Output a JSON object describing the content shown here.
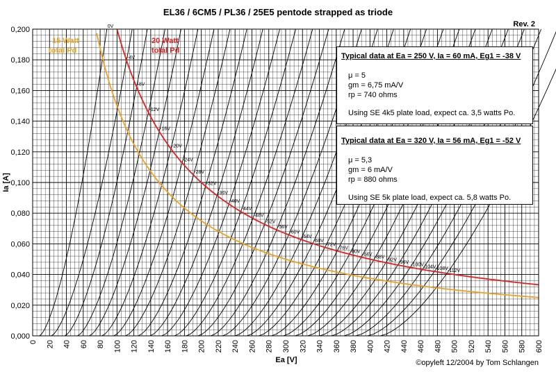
{
  "chart_data": {
    "type": "line",
    "title": "EL36 / 6CM5 / PL36 / 25E5 pentode strapped as triode",
    "revision": "Rev. 2",
    "copyright": "©opyleft 12/2004 by Tom Schlangen",
    "xlabel": "Ea [V]",
    "ylabel": "Ia [A]",
    "xlim": [
      0,
      600
    ],
    "ylim": [
      0,
      0.2
    ],
    "grid": true,
    "x_ticks": [
      "0",
      "20",
      "40",
      "60",
      "80",
      "100",
      "120",
      "140",
      "160",
      "180",
      "200",
      "220",
      "240",
      "260",
      "280",
      "300",
      "320",
      "340",
      "360",
      "380",
      "400",
      "420",
      "440",
      "460",
      "480",
      "500",
      "520",
      "540",
      "560",
      "580",
      "600"
    ],
    "y_ticks": [
      "0,000",
      "0,020",
      "0,040",
      "0,060",
      "0,080",
      "0,100",
      "0,120",
      "0,140",
      "0,160",
      "0,180",
      "0,200"
    ],
    "grid_curves": [
      {
        "label": "0V",
        "x_zero": 8,
        "x_top": 88
      },
      {
        "label": "-4V",
        "x_zero": 22,
        "x_top": 118
      },
      {
        "label": "-8V",
        "x_zero": 38,
        "x_top": 136
      },
      {
        "label": "-12V",
        "x_zero": 53,
        "x_top": 157
      },
      {
        "label": "-16V",
        "x_zero": 67,
        "x_top": 176
      },
      {
        "label": "-20V",
        "x_zero": 82,
        "x_top": 196
      },
      {
        "label": "-24V",
        "x_zero": 96,
        "x_top": 215
      },
      {
        "label": "-28V",
        "x_zero": 110,
        "x_top": 234
      },
      {
        "label": "-32V",
        "x_zero": 125,
        "x_top": 254
      },
      {
        "label": "-36V",
        "x_zero": 139,
        "x_top": 273
      },
      {
        "label": "-40V",
        "x_zero": 153,
        "x_top": 293
      },
      {
        "label": "-44V",
        "x_zero": 168,
        "x_top": 312
      },
      {
        "label": "-48V",
        "x_zero": 182,
        "x_top": 332
      },
      {
        "label": "-52V",
        "x_zero": 196,
        "x_top": 351
      },
      {
        "label": "-56V",
        "x_zero": 211,
        "x_top": 370
      },
      {
        "label": "-60V",
        "x_zero": 225,
        "x_top": 390
      },
      {
        "label": "-64V",
        "x_zero": 240,
        "x_top": 409
      },
      {
        "label": "-68V",
        "x_zero": 254,
        "x_top": 428
      },
      {
        "label": "-72V",
        "x_zero": 268,
        "x_top": 448
      },
      {
        "label": "-76V",
        "x_zero": 283,
        "x_top": 467
      },
      {
        "label": "-80V",
        "x_zero": 297,
        "x_top": 487
      },
      {
        "label": "-84V",
        "x_zero": 311,
        "x_top": 506
      },
      {
        "label": "-88V",
        "x_zero": 326,
        "x_top": 525
      },
      {
        "label": "-92V",
        "x_zero": 340,
        "x_top": 545
      },
      {
        "label": "-96V",
        "x_zero": 354,
        "x_top": 564
      },
      {
        "label": "-100V",
        "x_zero": 369,
        "x_top": 583
      },
      {
        "label": "-104V",
        "x_zero": 383,
        "x_top": 603
      },
      {
        "label": "-108V",
        "x_zero": 397,
        "x_top": 622
      },
      {
        "label": "-112V",
        "x_zero": 412,
        "x_top": 641
      }
    ],
    "power_curves": [
      {
        "label_line1": "15 Watt",
        "label_line2": "total Pd",
        "watts": 15,
        "color": "#f0a020"
      },
      {
        "label_line1": "20 Watt",
        "label_line2": "total Pd",
        "watts": 20,
        "color": "#e02020"
      }
    ]
  },
  "info_boxes": [
    {
      "header": "Typical data at Ea = 250 V, Ia = 60 mA, Eg1 = -38 V",
      "lines": [
        "μ   = 5",
        "gm = 6,75 mA/V",
        "rp  = 740 ohms"
      ],
      "note": "Using SE 4k5 plate load, expect ca. 3,5 watts Po."
    },
    {
      "header": "Typical data at Ea = 320 V, Ia = 56 mA, Eg1 = -52 V",
      "lines": [
        "μ   = 5,3",
        "gm = 6 mA/V",
        "rp  = 880 ohms"
      ],
      "note": "Using SE 5k plate load, expect ca. 5,8 watts Po."
    }
  ]
}
